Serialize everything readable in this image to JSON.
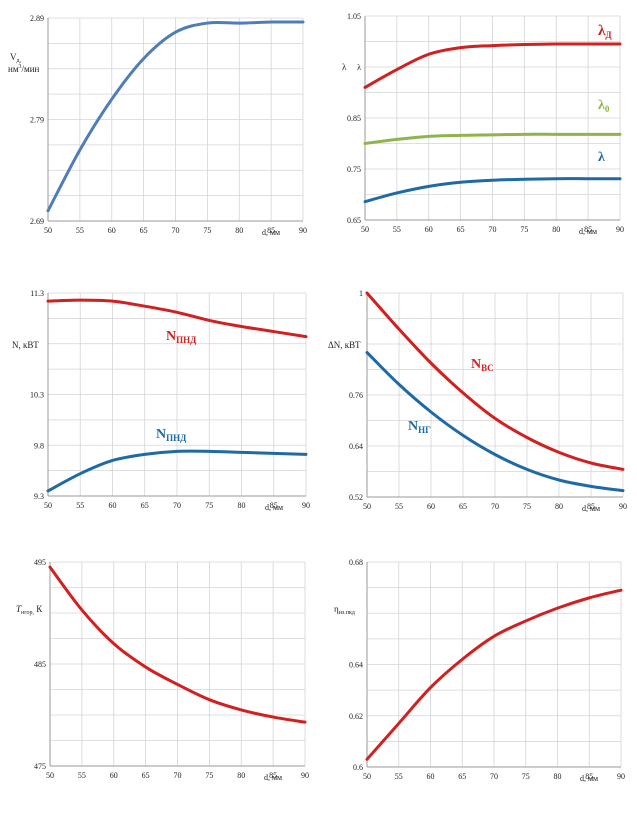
{
  "chart_data": [
    {
      "type": "line",
      "xlabel": "d, мм",
      "ylabel": "V",
      "ylabel_sub": "д,",
      "ylabel_line2": "нм",
      "ylabel_sup": "3",
      "ylabel_line2_tail": "/мин",
      "x": [
        50,
        55,
        60,
        65,
        70,
        75,
        80,
        85,
        90
      ],
      "x_ticks": [
        "50",
        "55",
        "60",
        "65",
        "70",
        "75",
        "80",
        "85",
        "90"
      ],
      "ylim": [
        2.69,
        2.89
      ],
      "y_ticks": [
        "2.69",
        "2.79",
        "2.89"
      ],
      "grid": true,
      "series": [
        {
          "color": "#4f7db8",
          "values": [
            2.7,
            2.76,
            2.81,
            2.85,
            2.876,
            2.885,
            2.885,
            2.886,
            2.886
          ]
        }
      ]
    },
    {
      "type": "line",
      "xlabel": "d, мм",
      "ylabel": "λ",
      "x": [
        50,
        55,
        60,
        65,
        70,
        75,
        80,
        85,
        90
      ],
      "x_ticks": [
        "50",
        "55",
        "60",
        "65",
        "70",
        "75",
        "80",
        "85",
        "90"
      ],
      "ylim": [
        0.65,
        1.05
      ],
      "y_ticks": [
        "0.65",
        "0.75",
        "0.85",
        "λ",
        "1.05"
      ],
      "grid": true,
      "series": [
        {
          "name": "λ",
          "name_sub": "Д",
          "color": "#d21f1f",
          "values": [
            0.91,
            0.945,
            0.975,
            0.988,
            0.992,
            0.994,
            0.995,
            0.995,
            0.995
          ]
        },
        {
          "name": "λ",
          "name_sub": "0",
          "color": "#8db54a",
          "values": [
            0.8,
            0.808,
            0.814,
            0.816,
            0.817,
            0.818,
            0.818,
            0.818,
            0.818
          ]
        },
        {
          "name": "λ",
          "name_sub": "",
          "color": "#1f6aa5",
          "values": [
            0.686,
            0.703,
            0.716,
            0.724,
            0.728,
            0.73,
            0.731,
            0.731,
            0.731
          ]
        }
      ]
    },
    {
      "type": "line",
      "xlabel": "d, мм",
      "ylabel": "N,  кВТ",
      "x": [
        50,
        55,
        60,
        65,
        70,
        75,
        80,
        85,
        90
      ],
      "x_ticks": [
        "50",
        "55",
        "60",
        "65",
        "70",
        "75",
        "80",
        "85",
        "90"
      ],
      "ylim": [
        9.3,
        11.3
      ],
      "y_ticks": [
        "9.3",
        "9.8",
        "10.3",
        "11.3"
      ],
      "grid": true,
      "series": [
        {
          "name": "N",
          "name_sub": "ПНД",
          "color": "#d21f1f",
          "values": [
            11.22,
            11.23,
            11.22,
            11.17,
            11.11,
            11.03,
            10.97,
            10.92,
            10.87
          ]
        },
        {
          "name": "N",
          "name_sub": "ПНД",
          "color": "#1f6aa5",
          "values": [
            9.35,
            9.52,
            9.65,
            9.71,
            9.74,
            9.74,
            9.73,
            9.72,
            9.71
          ]
        }
      ]
    },
    {
      "type": "line",
      "xlabel": "d, мм",
      "ylabel": "ΔN,  кВТ",
      "x": [
        50,
        55,
        60,
        65,
        70,
        75,
        80,
        85,
        90
      ],
      "x_ticks": [
        "50",
        "55",
        "60",
        "65",
        "70",
        "75",
        "80",
        "85",
        "90"
      ],
      "ylim": [
        0.52,
        1.0
      ],
      "y_ticks": [
        "0.52",
        "0.64",
        "0.76",
        "1"
      ],
      "grid": true,
      "series": [
        {
          "name": "N",
          "name_sub": "ВС",
          "color": "#d21f1f",
          "values": [
            1.0,
            0.915,
            0.835,
            0.765,
            0.705,
            0.66,
            0.625,
            0.6,
            0.585
          ]
        },
        {
          "name": "N",
          "name_sub": "НГ",
          "color": "#1f6aa5",
          "values": [
            0.86,
            0.785,
            0.72,
            0.665,
            0.62,
            0.585,
            0.56,
            0.545,
            0.535
          ]
        }
      ]
    },
    {
      "type": "line",
      "xlabel": "d, мм",
      "ylabel": "T",
      "ylabel_sub": "нгор,",
      "ylabel_tail": " К",
      "x": [
        50,
        55,
        60,
        65,
        70,
        75,
        80,
        85,
        90
      ],
      "x_ticks": [
        "50",
        "55",
        "60",
        "65",
        "70",
        "75",
        "80",
        "85",
        "90"
      ],
      "ylim": [
        475,
        495
      ],
      "y_ticks": [
        "475",
        "485",
        "495"
      ],
      "grid": true,
      "series": [
        {
          "color": "#d21f1f",
          "values": [
            494.5,
            490.3,
            487.0,
            484.7,
            483.0,
            481.5,
            480.5,
            479.8,
            479.3
          ]
        }
      ]
    },
    {
      "type": "line",
      "xlabel": "d, мм",
      "ylabel": "η",
      "ylabel_sub": "из.пкд",
      "x": [
        50,
        55,
        60,
        65,
        70,
        75,
        80,
        85,
        90
      ],
      "x_ticks": [
        "50",
        "55",
        "60",
        "65",
        "70",
        "75",
        "80",
        "85",
        "90"
      ],
      "ylim": [
        0.6,
        0.68
      ],
      "y_ticks": [
        "0.6",
        "0.62",
        "0.64",
        "0.68"
      ],
      "grid": true,
      "series": [
        {
          "color": "#d21f1f",
          "values": [
            0.603,
            0.617,
            0.631,
            0.642,
            0.651,
            0.657,
            0.662,
            0.666,
            0.669
          ]
        }
      ]
    }
  ]
}
